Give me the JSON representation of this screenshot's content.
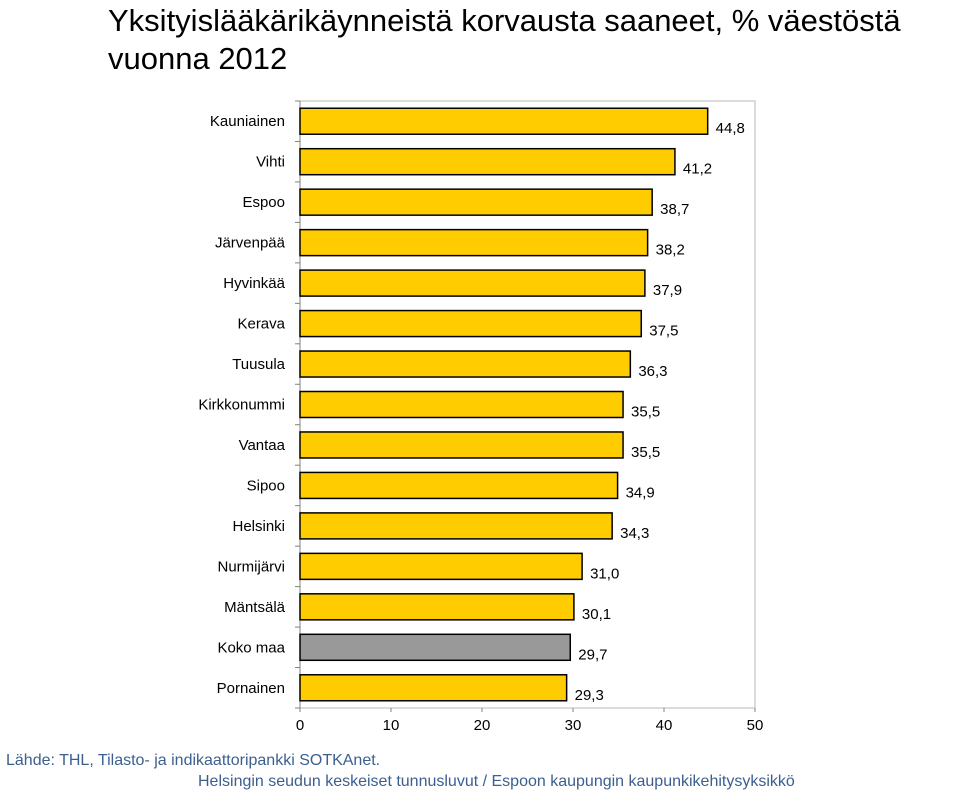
{
  "title_line1": "Yksityislääkärikäynneistä korvausta saaneet, % väestöstä",
  "title_line2": "vuonna 2012",
  "source": "Lähde: THL, Tilasto- ja indikaattoripankki SOTKAnet.",
  "footer": "Helsingin seudun keskeiset tunnusluvut / Espoon kaupungin kaupunkikehitysyksikkö",
  "colors": {
    "bar": "#FFCC00",
    "highlight_bar": "#999999",
    "bar_border": "#000000",
    "text": "#000000",
    "source_text": "#3b5f8f"
  },
  "chart_data": {
    "type": "bar",
    "orientation": "horizontal",
    "title": "Yksityislääkärikäynneistä korvausta saaneet, % väestöstä vuonna 2012",
    "categories": [
      "Kauniainen",
      "Vihti",
      "Espoo",
      "Järvenpää",
      "Hyvinkää",
      "Kerava",
      "Tuusula",
      "Kirkkonummi",
      "Vantaa",
      "Sipoo",
      "Helsinki",
      "Nurmijärvi",
      "Mäntsälä",
      "Koko maa",
      "Pornainen"
    ],
    "values": [
      44.8,
      41.2,
      38.7,
      38.2,
      37.9,
      37.5,
      36.3,
      35.5,
      35.5,
      34.9,
      34.3,
      31.0,
      30.1,
      29.7,
      29.3
    ],
    "value_labels": [
      "44,8",
      "41,2",
      "38,7",
      "38,2",
      "37,9",
      "37,5",
      "36,3",
      "35,5",
      "35,5",
      "34,9",
      "34,3",
      "31,0",
      "30,1",
      "29,7",
      "29,3"
    ],
    "highlight": [
      "Koko maa"
    ],
    "xlim": [
      0,
      50
    ],
    "xticks": [
      0,
      10,
      20,
      30,
      40,
      50
    ],
    "xtick_labels": [
      "0",
      "10",
      "20",
      "30",
      "40",
      "50"
    ],
    "xlabel": "",
    "ylabel": "",
    "grid": false,
    "legend": false
  }
}
